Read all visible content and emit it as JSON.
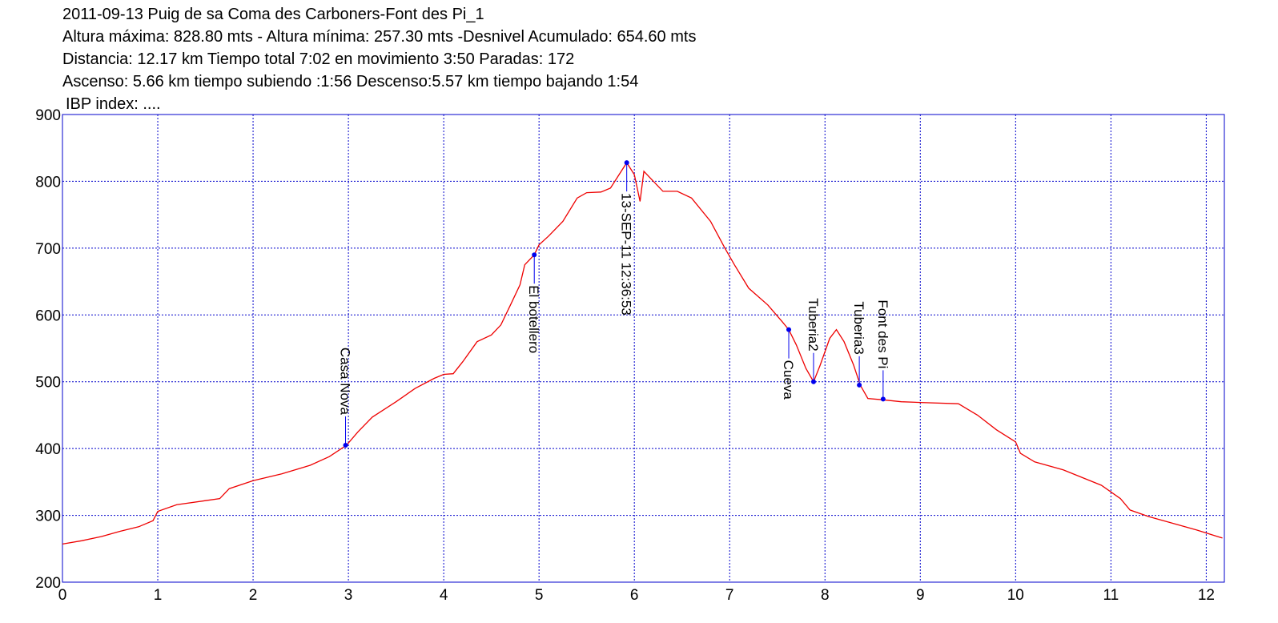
{
  "chart_data": {
    "type": "line",
    "title": "2011-09-13 Puig de sa Coma des Carboners-Font des Pi_1",
    "subtitles": [
      "Altura máxima: 828.80 mts - Altura mínima: 257.30 mts -Desnivel Acumulado: 654.60 mts",
      "Distancia: 12.17 km  Tiempo total 7:02  en movimiento 3:50 Paradas: 172",
      "Ascenso: 5.66 km  tiempo subiendo :1:56  Descenso:5.57 km tiempo bajando 1:54",
      "IBP index: ...."
    ],
    "xlim": [
      0,
      12.19
    ],
    "ylim": [
      200,
      900
    ],
    "xticks": [
      0,
      1,
      2,
      3,
      4,
      5,
      6,
      7,
      8,
      9,
      10,
      11,
      12
    ],
    "yticks": [
      200,
      300,
      400,
      500,
      600,
      700,
      800,
      900
    ],
    "grid": true,
    "grid_color": "#0000cc",
    "frame_color": "#0000cc",
    "series": [
      {
        "color": "#ee0000",
        "x": [
          0,
          0.2,
          0.4,
          0.6,
          0.8,
          0.95,
          1.0,
          1.2,
          1.5,
          1.65,
          1.75,
          2.0,
          2.3,
          2.6,
          2.8,
          2.98,
          3.1,
          3.25,
          3.5,
          3.7,
          3.9,
          4.0,
          4.1,
          4.2,
          4.35,
          4.5,
          4.6,
          4.7,
          4.8,
          4.85,
          4.95,
          5.0,
          5.1,
          5.25,
          5.4,
          5.5,
          5.65,
          5.75,
          5.92,
          6.0,
          6.06,
          6.1,
          6.2,
          6.3,
          6.45,
          6.6,
          6.8,
          6.95,
          7.05,
          7.2,
          7.4,
          7.55,
          7.62,
          7.7,
          7.8,
          7.88,
          7.95,
          8.05,
          8.12,
          8.2,
          8.3,
          8.37,
          8.45,
          8.6,
          8.8,
          9.0,
          9.4,
          9.6,
          9.8,
          10.0,
          10.05,
          10.2,
          10.5,
          10.9,
          11.1,
          11.2,
          11.4,
          11.6,
          11.9,
          12.17
        ],
        "values": [
          257,
          262,
          268,
          276,
          283,
          292,
          306,
          316,
          322,
          325,
          340,
          352,
          362,
          375,
          388,
          405,
          425,
          447,
          470,
          490,
          505,
          511,
          512,
          530,
          560,
          570,
          585,
          615,
          645,
          675,
          690,
          705,
          718,
          740,
          775,
          783,
          784,
          790,
          828,
          810,
          770,
          815,
          800,
          785,
          785,
          775,
          740,
          700,
          675,
          640,
          615,
          590,
          578,
          555,
          520,
          500,
          525,
          565,
          578,
          560,
          525,
          495,
          475,
          473,
          470,
          469,
          467,
          450,
          428,
          410,
          393,
          380,
          368,
          345,
          325,
          308,
          298,
          290,
          278,
          266
        ]
      }
    ],
    "waypoints": {
      "color": "#0000ee",
      "x": [
        2.97,
        4.95,
        5.92,
        7.62,
        7.88,
        8.36,
        8.61
      ],
      "values": [
        405,
        690,
        828,
        578,
        500,
        495,
        474
      ],
      "labels": [
        "Casa Nova",
        "El botellero",
        "13-SEP-11 12:36:53",
        "Cueva",
        "Tuberia2",
        "Tuberia3",
        "Font des Pi"
      ],
      "label_positions": [
        "above",
        "below",
        "below",
        "below",
        "above",
        "above",
        "above"
      ]
    }
  }
}
